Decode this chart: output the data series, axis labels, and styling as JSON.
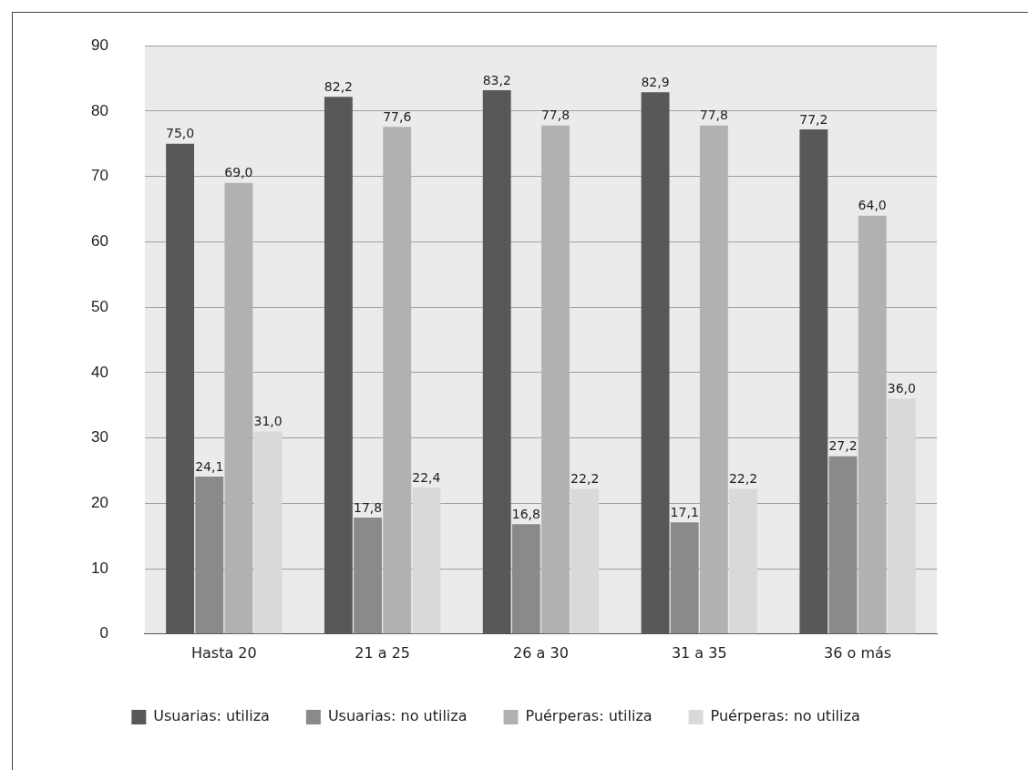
{
  "chart_data": {
    "type": "bar",
    "categories": [
      "Hasta 20",
      "21 a 25",
      "26 a 30",
      "31 a 35",
      "36 o más"
    ],
    "series": [
      {
        "name": "Usuarias: utiliza",
        "color": "#58585a",
        "values": [
          75.0,
          82.2,
          83.2,
          82.9,
          77.2
        ],
        "value_labels": [
          "75,0",
          "82,2",
          "83,2",
          "82,9",
          "77,2"
        ]
      },
      {
        "name": "Usuarias: no utiliza",
        "color": "#8a8a8c",
        "values": [
          24.1,
          17.8,
          16.8,
          17.1,
          27.2
        ],
        "value_labels": [
          "24,1",
          "17,8",
          "16,8",
          "17,1",
          "27,2"
        ]
      },
      {
        "name": "Puérperas: utiliza",
        "color": "#b1b1b3",
        "values": [
          69.0,
          77.6,
          77.8,
          77.8,
          64.0
        ],
        "value_labels": [
          "69,0",
          "77,6",
          "77,8",
          "77,8",
          "64,0"
        ]
      },
      {
        "name": "Puérperas: no utiliza",
        "color": "#d9d9db",
        "values": [
          31.0,
          22.4,
          22.2,
          22.2,
          36.0
        ],
        "value_labels": [
          "31,0",
          "22,4",
          "22,2",
          "22,2",
          "36,0"
        ]
      }
    ],
    "ylim": [
      0,
      90
    ],
    "yticks": [
      0,
      10,
      20,
      30,
      40,
      50,
      60,
      70,
      80,
      90
    ],
    "grid": "y",
    "legend": "bottom"
  }
}
